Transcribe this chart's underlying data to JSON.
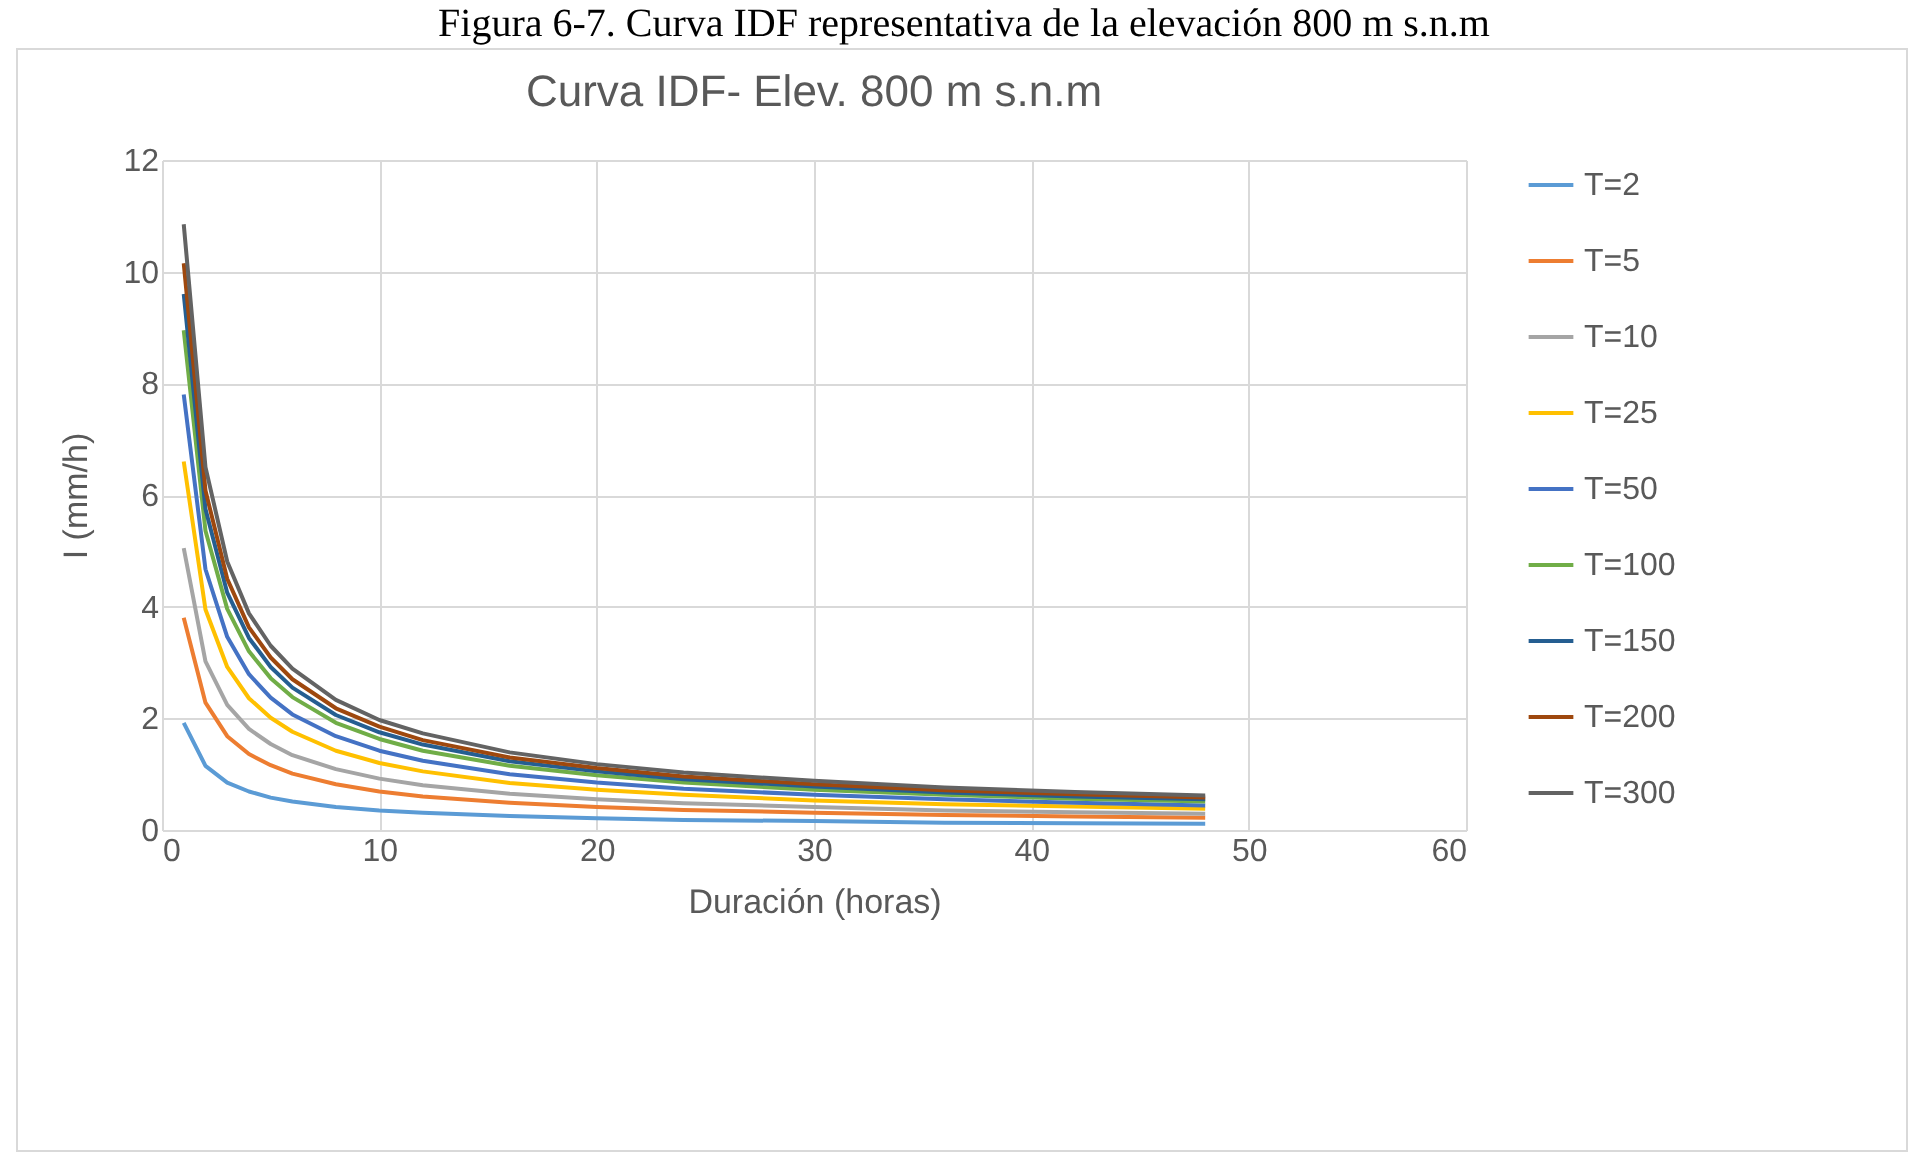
{
  "chart_data": {
    "type": "line",
    "title": "Curva IDF- Elev. 800 m s.n.m",
    "xlabel": "Duración (horas)",
    "ylabel": "I (mm/h)",
    "annotations": [
      "Figura 6-7. Curva IDF representativa de la elevación 800 m s.n.m"
    ],
    "x": [
      1,
      2,
      3,
      4,
      5,
      6,
      8,
      10,
      12,
      16,
      20,
      24,
      30,
      36,
      42,
      48
    ],
    "series": [
      {
        "name": "T=2",
        "color": "#5b9bd5",
        "values": [
          1.92,
          1.15,
          0.85,
          0.69,
          0.58,
          0.51,
          0.41,
          0.35,
          0.31,
          0.25,
          0.21,
          0.18,
          0.16,
          0.13,
          0.12,
          0.11
        ]
      },
      {
        "name": "T=5",
        "color": "#ed7d31",
        "values": [
          3.8,
          2.28,
          1.68,
          1.36,
          1.16,
          1.01,
          0.82,
          0.69,
          0.6,
          0.49,
          0.41,
          0.36,
          0.31,
          0.27,
          0.24,
          0.22
        ]
      },
      {
        "name": "T=10",
        "color": "#a5a5a5",
        "values": [
          5.05,
          3.02,
          2.24,
          1.81,
          1.54,
          1.34,
          1.09,
          0.92,
          0.8,
          0.65,
          0.55,
          0.48,
          0.41,
          0.35,
          0.32,
          0.29
        ]
      },
      {
        "name": "T=25",
        "color": "#ffc000",
        "values": [
          6.6,
          3.95,
          2.92,
          2.36,
          2.01,
          1.76,
          1.42,
          1.2,
          1.05,
          0.84,
          0.72,
          0.63,
          0.53,
          0.46,
          0.42,
          0.38
        ]
      },
      {
        "name": "T=50",
        "color": "#4472c4",
        "values": [
          7.8,
          4.67,
          3.46,
          2.79,
          2.37,
          2.07,
          1.68,
          1.42,
          1.24,
          1.0,
          0.85,
          0.74,
          0.63,
          0.55,
          0.49,
          0.44
        ]
      },
      {
        "name": "T=100",
        "color": "#70ad47",
        "values": [
          8.95,
          5.36,
          3.96,
          3.2,
          2.72,
          2.38,
          1.92,
          1.63,
          1.42,
          1.15,
          0.98,
          0.85,
          0.72,
          0.63,
          0.56,
          0.51
        ]
      },
      {
        "name": "T=150",
        "color": "#255e91",
        "values": [
          9.6,
          5.75,
          4.25,
          3.44,
          2.92,
          2.55,
          2.06,
          1.75,
          1.53,
          1.23,
          1.05,
          0.91,
          0.78,
          0.67,
          0.6,
          0.55
        ]
      },
      {
        "name": "T=200",
        "color": "#9e480e",
        "values": [
          10.15,
          6.08,
          4.5,
          3.63,
          3.09,
          2.7,
          2.18,
          1.85,
          1.61,
          1.3,
          1.11,
          0.96,
          0.82,
          0.71,
          0.64,
          0.58
        ]
      },
      {
        "name": "T=300",
        "color": "#636363",
        "values": [
          10.85,
          6.5,
          4.81,
          3.88,
          3.3,
          2.89,
          2.33,
          1.97,
          1.73,
          1.39,
          1.18,
          1.03,
          0.88,
          0.76,
          0.68,
          0.62
        ]
      }
    ],
    "xlim": [
      0,
      60
    ],
    "xticks": [
      0,
      10,
      20,
      30,
      40,
      50,
      60
    ],
    "ylim": [
      0,
      12
    ],
    "yticks": [
      0,
      2,
      4,
      6,
      8,
      10,
      12
    ],
    "grid": true,
    "legend": "right",
    "marker": "none",
    "line_style": "solid"
  }
}
